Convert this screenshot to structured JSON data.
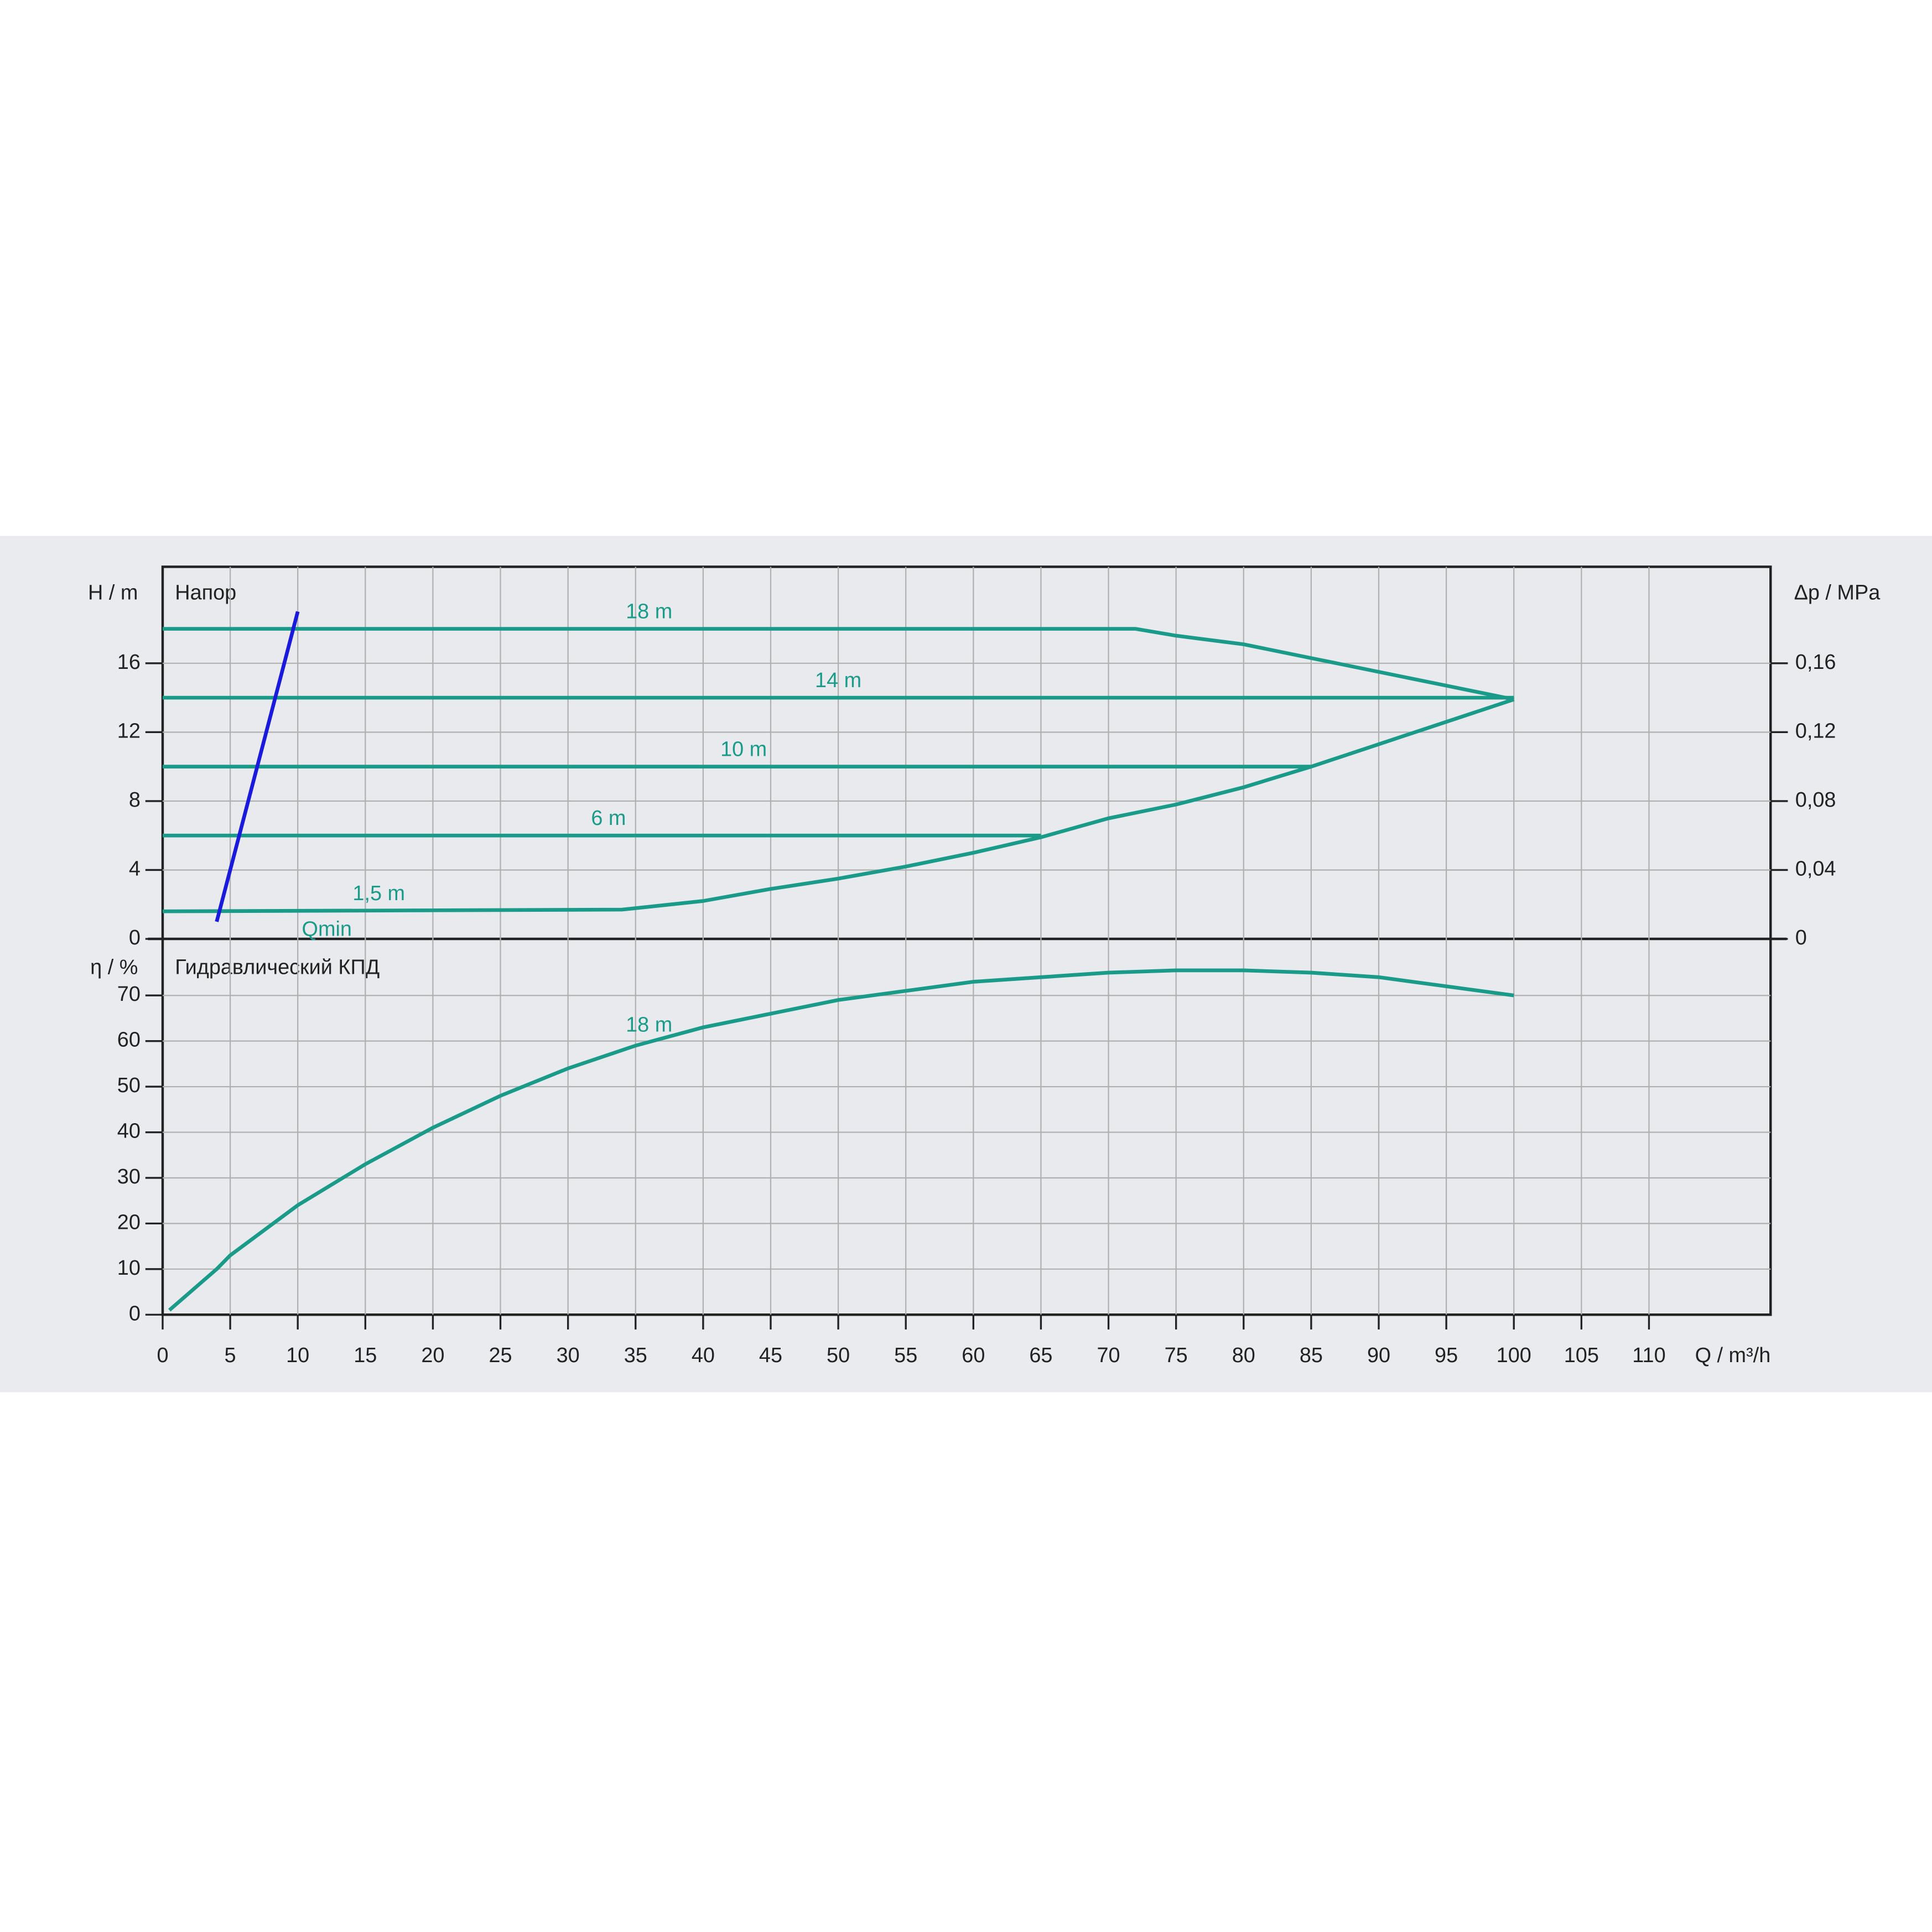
{
  "chart_data": [
    {
      "type": "line",
      "title": "Напор",
      "ylabel": "H / m",
      "y2label": "Δp / MPa",
      "ylim": [
        0,
        21.6
      ],
      "yticks": [
        0,
        4,
        8,
        12,
        16
      ],
      "y2lim": [
        0,
        0.216
      ],
      "y2ticks": [
        0,
        {
          "value": 0.04,
          "label": "0,04"
        },
        {
          "value": 0.08,
          "label": "0,08"
        },
        {
          "value": 0.12,
          "label": "0,12"
        },
        {
          "value": 0.16,
          "label": "0,16"
        }
      ],
      "grid": true,
      "series": [
        {
          "name": "18 m",
          "color": "#1a9b8a",
          "x": [
            0,
            72,
            75,
            80,
            85,
            90,
            95,
            100
          ],
          "values": [
            18,
            18,
            17.6,
            17.1,
            16.3,
            15.5,
            14.7,
            13.9
          ]
        },
        {
          "name": "14 m",
          "color": "#1a9b8a",
          "x": [
            0,
            100
          ],
          "values": [
            14,
            14
          ]
        },
        {
          "name": "10 m",
          "color": "#1a9b8a",
          "x": [
            0,
            85
          ],
          "values": [
            10,
            10
          ]
        },
        {
          "name": "6 m",
          "color": "#1a9b8a",
          "x": [
            0,
            65
          ],
          "values": [
            6,
            6
          ]
        },
        {
          "name": "1,5 m",
          "color": "#1a9b8a",
          "x": [
            0,
            34,
            40,
            45,
            50,
            55,
            60,
            65,
            70,
            75,
            80,
            85,
            90,
            95,
            100
          ],
          "values": [
            1.6,
            1.7,
            2.2,
            2.9,
            3.5,
            4.2,
            5.0,
            5.9,
            7.0,
            7.8,
            8.8,
            10.0,
            11.3,
            12.6,
            13.9
          ]
        },
        {
          "name": "Qmin",
          "color": "#1a1adc",
          "x": [
            4,
            10
          ],
          "values": [
            1,
            19
          ]
        }
      ]
    },
    {
      "type": "line",
      "title": "Гидравлический КПД",
      "ylabel": "η / %",
      "xlabel": "Q / m³/h",
      "xlim": [
        0,
        119
      ],
      "xticks": [
        0,
        5,
        10,
        15,
        20,
        25,
        30,
        35,
        40,
        45,
        50,
        55,
        60,
        65,
        70,
        75,
        80,
        85,
        90,
        95,
        100,
        105,
        110
      ],
      "ylim": [
        0,
        82.4
      ],
      "yticks": [
        0,
        10,
        20,
        30,
        40,
        50,
        60,
        70
      ],
      "grid": true,
      "series": [
        {
          "name": "18 m",
          "color": "#1a9b8a",
          "x": [
            0.5,
            4,
            5,
            10,
            15,
            20,
            25,
            30,
            35,
            40,
            45,
            50,
            55,
            60,
            65,
            70,
            75,
            80,
            85,
            90,
            95,
            100
          ],
          "values": [
            1,
            10,
            13,
            24,
            33,
            41,
            48,
            54,
            59,
            63,
            66,
            69,
            71,
            73,
            74,
            75,
            75.5,
            75.5,
            75,
            74,
            72,
            70
          ]
        }
      ]
    }
  ]
}
